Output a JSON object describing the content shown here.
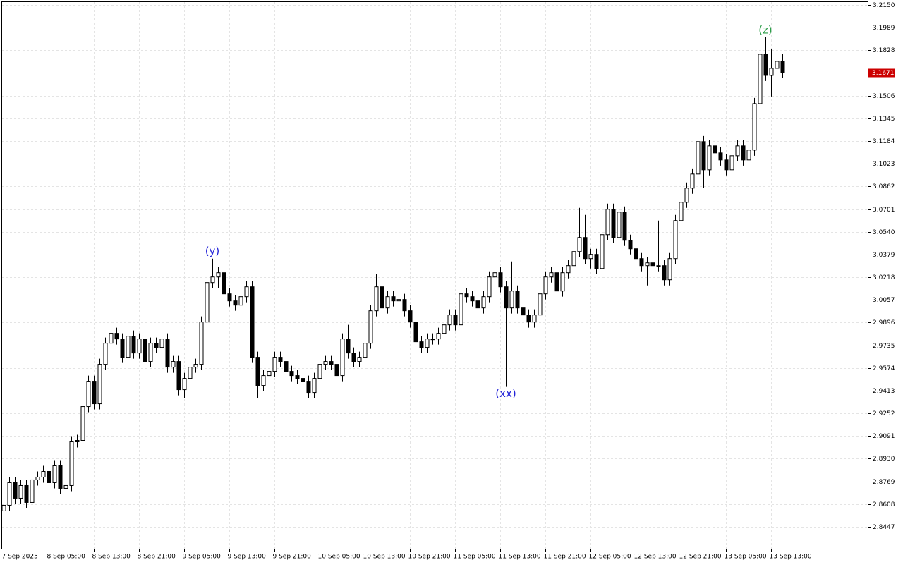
{
  "chart_data": {
    "type": "candlestick",
    "ylim": [
      2.8292,
      3.2175
    ],
    "yticks": [
      {
        "value": 3.215,
        "label": "3.2150"
      },
      3.1989,
      3.1828,
      3.1506,
      3.1345,
      3.1184,
      3.1023,
      3.0862,
      3.0701,
      {
        "value": 3.054,
        "label": "3.0540"
      },
      3.0379,
      3.0218,
      3.0057,
      2.9896,
      2.9735,
      2.9574,
      2.9413,
      2.9252,
      2.9091,
      {
        "value": 2.893,
        "label": "2.8930"
      },
      2.8769,
      2.8608,
      2.8447
    ],
    "grid": true,
    "up_color": "#ffffff",
    "down_color": "#000000",
    "outline_color": "#000000",
    "last_price": 3.1671,
    "last_price_color": "#cc0000",
    "categories": [
      "7 Sep 2025",
      null,
      null,
      null,
      null,
      null,
      null,
      null,
      "8 Sep 05:00",
      null,
      null,
      null,
      null,
      null,
      null,
      null,
      "8 Sep 13:00",
      null,
      null,
      null,
      null,
      null,
      null,
      null,
      "8 Sep 21:00",
      null,
      null,
      null,
      null,
      null,
      null,
      null,
      "9 Sep 05:00",
      null,
      null,
      null,
      null,
      null,
      null,
      null,
      "9 Sep 13:00",
      null,
      null,
      null,
      null,
      null,
      null,
      null,
      "9 Sep 21:00",
      null,
      null,
      null,
      null,
      null,
      null,
      null,
      "10 Sep 05:00",
      null,
      null,
      null,
      null,
      null,
      null,
      null,
      "10 Sep 13:00",
      null,
      null,
      null,
      null,
      null,
      null,
      null,
      "10 Sep 21:00",
      null,
      null,
      null,
      null,
      null,
      null,
      null,
      "11 Sep 05:00",
      null,
      null,
      null,
      null,
      null,
      null,
      null,
      "11 Sep 13:00",
      null,
      null,
      null,
      null,
      null,
      null,
      null,
      "11 Sep 21:00",
      null,
      null,
      null,
      null,
      null,
      null,
      null,
      "12 Sep 05:00",
      null,
      null,
      null,
      null,
      null,
      null,
      null,
      "12 Sep 13:00",
      null,
      null,
      null,
      null,
      null,
      null,
      null,
      "12 Sep 21:00",
      null,
      null,
      null,
      null,
      null,
      null,
      null,
      "13 Sep 05:00",
      null,
      null,
      null,
      null,
      null,
      null,
      null,
      "13 Sep 13:00",
      null,
      null
    ],
    "ohlc": [
      [
        2.856,
        2.864,
        2.852,
        2.86
      ],
      [
        2.86,
        2.88,
        2.856,
        2.876
      ],
      [
        2.876,
        2.88,
        2.861,
        2.865
      ],
      [
        2.865,
        2.878,
        2.861,
        2.874
      ],
      [
        2.874,
        2.878,
        2.858,
        2.862
      ],
      [
        2.862,
        2.882,
        2.858,
        2.878
      ],
      [
        2.878,
        2.884,
        2.874,
        2.88
      ],
      [
        2.88,
        2.888,
        2.876,
        2.884
      ],
      [
        2.884,
        2.888,
        2.872,
        2.876
      ],
      [
        2.876,
        2.892,
        2.872,
        2.888
      ],
      [
        2.888,
        2.892,
        2.868,
        2.872
      ],
      [
        2.872,
        2.878,
        2.868,
        2.874
      ],
      [
        2.874,
        2.909,
        2.87,
        2.905
      ],
      [
        2.905,
        2.91,
        2.901,
        2.906
      ],
      [
        2.906,
        2.934,
        2.902,
        2.93
      ],
      [
        2.93,
        2.952,
        2.926,
        2.948
      ],
      [
        2.948,
        2.952,
        2.928,
        2.932
      ],
      [
        2.932,
        2.964,
        2.928,
        2.96
      ],
      [
        2.96,
        2.979,
        2.956,
        2.975
      ],
      [
        2.975,
        2.995,
        2.971,
        2.982
      ],
      [
        2.982,
        2.986,
        2.974,
        2.978
      ],
      [
        2.978,
        2.982,
        2.961,
        2.965
      ],
      [
        2.965,
        2.984,
        2.961,
        2.98
      ],
      [
        2.98,
        2.984,
        2.964,
        2.968
      ],
      [
        2.968,
        2.982,
        2.964,
        2.978
      ],
      [
        2.978,
        2.982,
        2.958,
        2.962
      ],
      [
        2.962,
        2.979,
        2.958,
        2.975
      ],
      [
        2.975,
        2.979,
        2.968,
        2.972
      ],
      [
        2.972,
        2.982,
        2.968,
        2.978
      ],
      [
        2.978,
        2.982,
        2.954,
        2.958
      ],
      [
        2.958,
        2.966,
        2.954,
        2.962
      ],
      [
        2.962,
        2.966,
        2.938,
        2.942
      ],
      [
        2.942,
        2.954,
        2.936,
        2.95
      ],
      [
        2.95,
        2.962,
        2.946,
        2.958
      ],
      [
        2.958,
        2.964,
        2.954,
        2.96
      ],
      [
        2.96,
        2.994,
        2.956,
        2.99
      ],
      [
        2.99,
        3.022,
        2.986,
        3.018
      ],
      [
        3.018,
        3.035,
        3.014,
        3.022
      ],
      [
        3.022,
        3.029,
        3.014,
        3.025
      ],
      [
        3.025,
        3.029,
        3.006,
        3.01
      ],
      [
        3.01,
        3.014,
        3.001,
        3.005
      ],
      [
        3.005,
        3.009,
        2.998,
        3.002
      ],
      [
        3.002,
        3.028,
        2.998,
        3.008
      ],
      [
        3.008,
        3.019,
        3.004,
        3.015
      ],
      [
        3.015,
        3.019,
        2.961,
        2.965
      ],
      [
        2.965,
        2.969,
        2.936,
        2.945
      ],
      [
        2.945,
        2.956,
        2.941,
        2.952
      ],
      [
        2.952,
        2.959,
        2.948,
        2.955
      ],
      [
        2.955,
        2.969,
        2.951,
        2.965
      ],
      [
        2.965,
        2.969,
        2.958,
        2.962
      ],
      [
        2.962,
        2.966,
        2.951,
        2.955
      ],
      [
        2.955,
        2.959,
        2.948,
        2.952
      ],
      [
        2.952,
        2.956,
        2.946,
        2.95
      ],
      [
        2.95,
        2.954,
        2.944,
        2.948
      ],
      [
        2.948,
        2.952,
        2.936,
        2.94
      ],
      [
        2.94,
        2.954,
        2.936,
        2.95
      ],
      [
        2.95,
        2.964,
        2.946,
        2.96
      ],
      [
        2.96,
        2.966,
        2.956,
        2.962
      ],
      [
        2.962,
        2.966,
        2.956,
        2.96
      ],
      [
        2.96,
        2.964,
        2.948,
        2.952
      ],
      [
        2.952,
        2.982,
        2.948,
        2.978
      ],
      [
        2.978,
        2.988,
        2.964,
        2.968
      ],
      [
        2.968,
        2.972,
        2.958,
        2.962
      ],
      [
        2.962,
        2.969,
        2.958,
        2.965
      ],
      [
        2.965,
        2.979,
        2.961,
        2.975
      ],
      [
        2.975,
        3.002,
        2.971,
        2.998
      ],
      [
        2.998,
        3.024,
        2.994,
        3.015
      ],
      [
        3.015,
        3.019,
        2.996,
        3.0
      ],
      [
        3.0,
        3.012,
        2.996,
        3.008
      ],
      [
        3.008,
        3.012,
        3.001,
        3.005
      ],
      [
        3.005,
        3.01,
        3.001,
        3.006
      ],
      [
        3.006,
        3.01,
        2.994,
        2.998
      ],
      [
        2.998,
        3.002,
        2.986,
        2.99
      ],
      [
        2.99,
        2.994,
        2.966,
        2.976
      ],
      [
        2.976,
        2.98,
        2.968,
        2.972
      ],
      [
        2.972,
        2.982,
        2.968,
        2.978
      ],
      [
        2.978,
        2.982,
        2.974,
        2.978
      ],
      [
        2.978,
        2.986,
        2.974,
        2.982
      ],
      [
        2.982,
        2.992,
        2.978,
        2.988
      ],
      [
        2.988,
        2.999,
        2.984,
        2.995
      ],
      [
        2.995,
        2.999,
        2.984,
        2.988
      ],
      [
        2.988,
        3.014,
        2.984,
        3.01
      ],
      [
        3.01,
        3.014,
        3.004,
        3.008
      ],
      [
        3.008,
        3.012,
        3.001,
        3.005
      ],
      [
        3.005,
        3.009,
        2.996,
        3.0
      ],
      [
        3.0,
        3.012,
        2.996,
        3.008
      ],
      [
        3.008,
        3.026,
        3.004,
        3.022
      ],
      [
        3.022,
        3.034,
        3.018,
        3.025
      ],
      [
        3.025,
        3.029,
        3.011,
        3.015
      ],
      [
        3.015,
        3.019,
        2.944,
        3.0
      ],
      [
        3.0,
        3.033,
        2.996,
        3.012
      ],
      [
        3.012,
        3.016,
        2.996,
        3.0
      ],
      [
        3.0,
        3.004,
        2.991,
        2.995
      ],
      [
        2.995,
        2.999,
        2.986,
        2.99
      ],
      [
        2.99,
        2.999,
        2.986,
        2.995
      ],
      [
        2.995,
        3.014,
        2.991,
        3.01
      ],
      [
        3.01,
        3.026,
        3.006,
        3.022
      ],
      [
        3.022,
        3.029,
        3.018,
        3.025
      ],
      [
        3.025,
        3.029,
        3.008,
        3.012
      ],
      [
        3.012,
        3.029,
        3.008,
        3.025
      ],
      [
        3.025,
        3.034,
        3.021,
        3.03
      ],
      [
        3.03,
        3.044,
        3.026,
        3.04
      ],
      [
        3.04,
        3.071,
        3.036,
        3.05
      ],
      [
        3.05,
        3.066,
        3.031,
        3.035
      ],
      [
        3.035,
        3.042,
        3.028,
        3.038
      ],
      [
        3.038,
        3.042,
        3.024,
        3.028
      ],
      [
        3.028,
        3.056,
        3.024,
        3.052
      ],
      [
        3.052,
        3.074,
        3.048,
        3.07
      ],
      [
        3.07,
        3.074,
        3.046,
        3.05
      ],
      [
        3.05,
        3.072,
        3.046,
        3.068
      ],
      [
        3.068,
        3.072,
        3.044,
        3.048
      ],
      [
        3.048,
        3.052,
        3.038,
        3.042
      ],
      [
        3.042,
        3.046,
        3.031,
        3.035
      ],
      [
        3.035,
        3.039,
        3.026,
        3.03
      ],
      [
        3.03,
        3.036,
        3.016,
        3.032
      ],
      [
        3.032,
        3.036,
        3.026,
        3.03
      ],
      [
        3.03,
        3.062,
        3.026,
        3.03
      ],
      [
        3.03,
        3.034,
        3.016,
        3.02
      ],
      [
        3.02,
        3.039,
        3.016,
        3.035
      ],
      [
        3.035,
        3.066,
        3.031,
        3.062
      ],
      [
        3.062,
        3.079,
        3.058,
        3.075
      ],
      [
        3.075,
        3.089,
        3.071,
        3.085
      ],
      [
        3.085,
        3.099,
        3.081,
        3.095
      ],
      [
        3.095,
        3.136,
        3.091,
        3.118
      ],
      [
        3.118,
        3.122,
        3.085,
        3.098
      ],
      [
        3.098,
        3.119,
        3.094,
        3.115
      ],
      [
        3.115,
        3.119,
        3.106,
        3.11
      ],
      [
        3.11,
        3.114,
        3.101,
        3.105
      ],
      [
        3.105,
        3.109,
        3.094,
        3.098
      ],
      [
        3.098,
        3.112,
        3.094,
        3.108
      ],
      [
        3.108,
        3.119,
        3.104,
        3.115
      ],
      [
        3.115,
        3.119,
        3.101,
        3.105
      ],
      [
        3.105,
        3.116,
        3.101,
        3.112
      ],
      [
        3.112,
        3.149,
        3.108,
        3.145
      ],
      [
        3.145,
        3.184,
        3.141,
        3.18
      ],
      [
        3.18,
        3.192,
        3.161,
        3.165
      ],
      [
        3.165,
        3.184,
        3.15,
        3.17
      ],
      [
        3.17,
        3.179,
        3.16,
        3.175
      ],
      [
        3.175,
        3.18,
        3.163,
        3.1671
      ]
    ],
    "annotations": [
      {
        "text": "(y)",
        "index": 37,
        "at": "high",
        "color": "#2323d8"
      },
      {
        "text": "(xx)",
        "index": 89,
        "at": "low",
        "color": "#2323d8"
      },
      {
        "text": "(z)",
        "index": 135,
        "at": "high",
        "color": "#2e9e4a"
      }
    ]
  }
}
